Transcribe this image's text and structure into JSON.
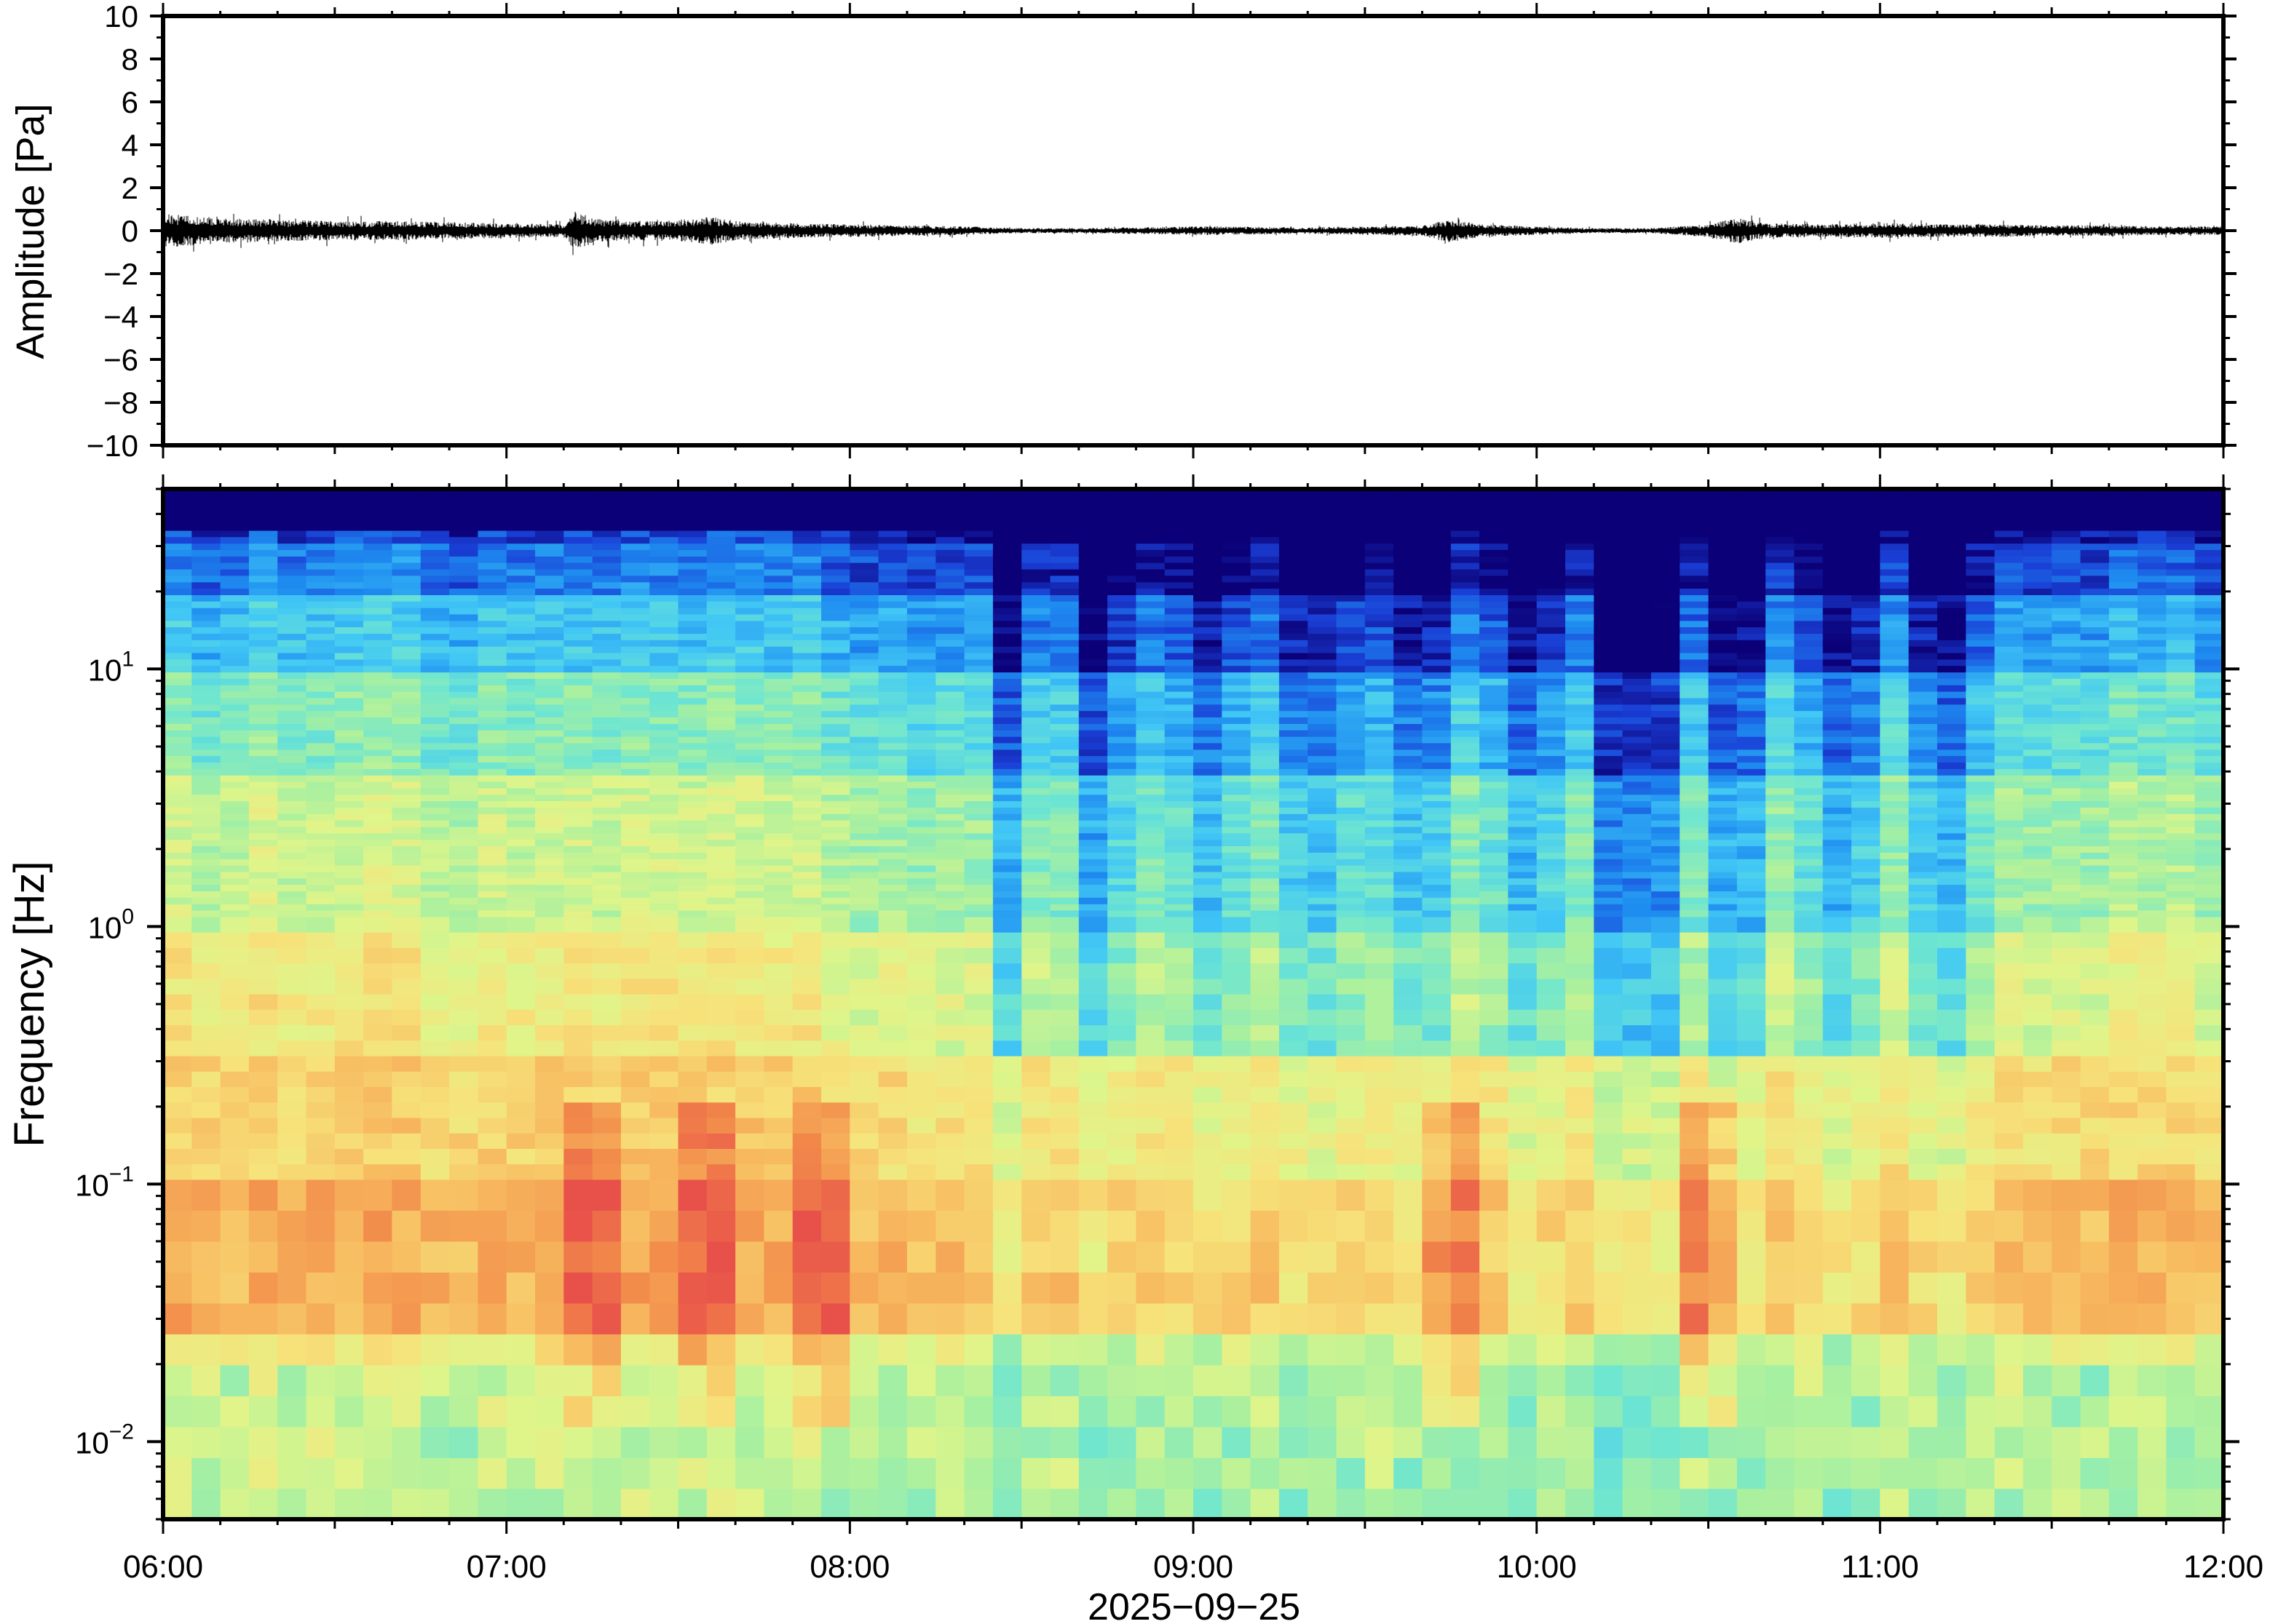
{
  "chart_data": [
    {
      "type": "line",
      "panel": "waveform",
      "ylabel": "Amplitude [Pa]",
      "xlabel": "2025−09−25",
      "xlim": [
        "06:00",
        "12:00"
      ],
      "ylim": [
        -10,
        10
      ],
      "y_ticks": [
        10,
        8,
        6,
        4,
        2,
        0,
        -2,
        -4,
        -6,
        -8,
        -10
      ],
      "y_tick_labels": [
        "10",
        "8",
        "6",
        "4",
        "2",
        "0",
        "−2",
        "−4",
        "−6",
        "−8",
        "−10"
      ],
      "line_color": "#000000",
      "envelope": {
        "x": [
          "06:00",
          "06:10",
          "06:20",
          "06:30",
          "06:40",
          "06:50",
          "07:00",
          "07:10",
          "07:12",
          "07:15",
          "07:20",
          "07:30",
          "07:35",
          "07:40",
          "07:50",
          "08:00",
          "08:10",
          "08:20",
          "08:30",
          "08:40",
          "08:50",
          "09:00",
          "09:10",
          "09:20",
          "09:30",
          "09:40",
          "09:45",
          "09:50",
          "10:00",
          "10:10",
          "10:20",
          "10:30",
          "10:35",
          "10:40",
          "10:50",
          "11:00",
          "11:10",
          "11:20",
          "11:30",
          "11:40",
          "11:50",
          "12:00"
        ],
        "amplitude": [
          0.8,
          0.6,
          0.5,
          0.45,
          0.45,
          0.4,
          0.35,
          0.3,
          0.9,
          0.6,
          0.45,
          0.5,
          0.7,
          0.45,
          0.35,
          0.3,
          0.25,
          0.2,
          0.12,
          0.12,
          0.15,
          0.2,
          0.18,
          0.15,
          0.2,
          0.25,
          0.55,
          0.3,
          0.2,
          0.12,
          0.12,
          0.3,
          0.6,
          0.35,
          0.3,
          0.35,
          0.3,
          0.3,
          0.25,
          0.25,
          0.2,
          0.2
        ]
      }
    },
    {
      "type": "heatmap",
      "panel": "spectrogram",
      "ylabel": "Frequency [Hz]",
      "xlabel": "2025−09−25",
      "xlim": [
        "06:00",
        "12:00"
      ],
      "ylim": [
        0.005,
        50
      ],
      "y_scale": "log",
      "y_ticks": [
        0.01,
        0.1,
        1,
        10
      ],
      "y_tick_labels": [
        {
          "base": "10",
          "exp": "−2"
        },
        {
          "base": "10",
          "exp": "−1"
        },
        {
          "base": "10",
          "exp": "0"
        },
        {
          "base": "10",
          "exp": "1"
        }
      ],
      "x_ticks": [
        "06:00",
        "07:00",
        "08:00",
        "09:00",
        "10:00",
        "11:00",
        "12:00"
      ],
      "colormap": [
        "#0b0077",
        "#1a3fd6",
        "#1e8cf0",
        "#42c8f5",
        "#6fe6d0",
        "#a8f0a0",
        "#dff58a",
        "#f7e27a",
        "#f7b85e",
        "#f28a4a",
        "#e8504a"
      ],
      "events_high_energy": [
        "07:15",
        "07:35",
        "07:55",
        "09:45",
        "10:30"
      ]
    }
  ]
}
